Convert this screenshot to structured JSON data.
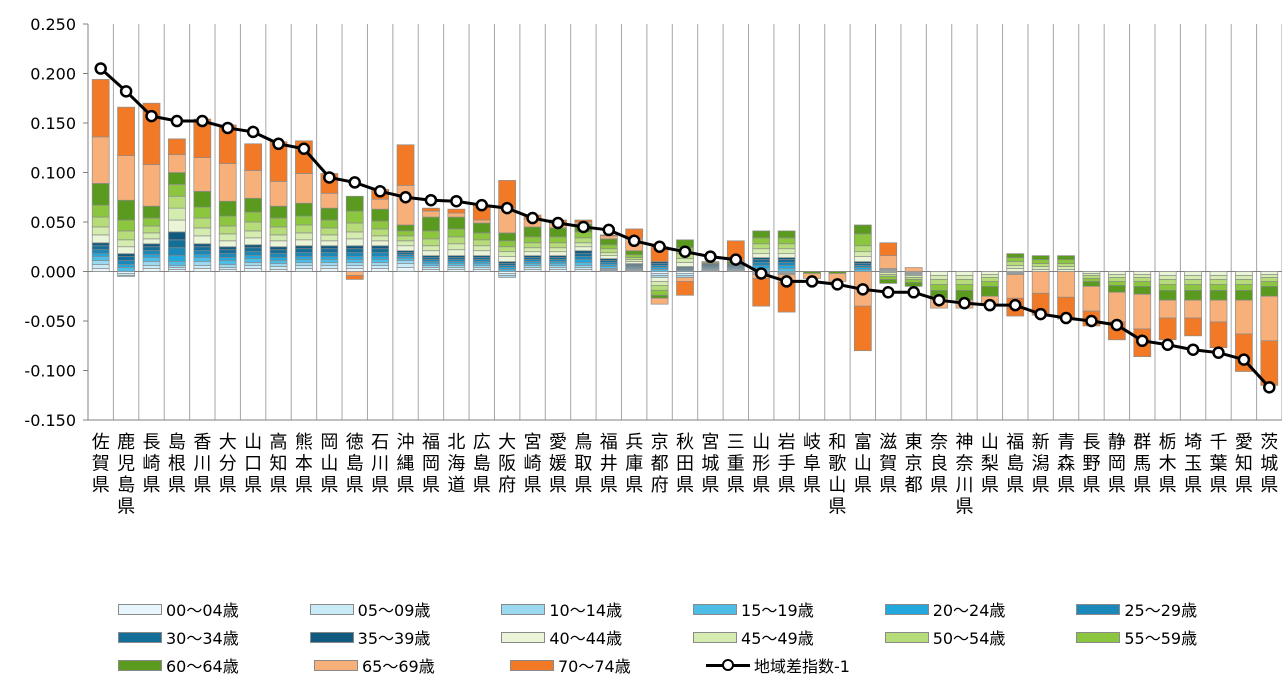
{
  "chart_data": {
    "type": "bar",
    "subtype": "stacked-bar-with-line",
    "title": "",
    "xlabel": "",
    "ylabel": "",
    "ylim": [
      -0.15,
      0.25
    ],
    "yticks": [
      0.25,
      0.2,
      0.15,
      0.1,
      0.05,
      0.0,
      -0.05,
      -0.1,
      -0.15
    ],
    "ytick_labels": [
      "0.250",
      "0.200",
      "0.150",
      "0.100",
      "0.050",
      "0.000",
      "-0.050",
      "-0.100",
      "-0.150"
    ],
    "grid": "vertical",
    "legend_position": "bottom",
    "categories": [
      "佐賀県",
      "鹿児島県",
      "長崎県",
      "島根県",
      "香川県",
      "大分県",
      "山口県",
      "高知県",
      "熊本県",
      "岡山県",
      "徳島県",
      "石川県",
      "沖縄県",
      "福岡県",
      "北海道",
      "広島県",
      "大阪府",
      "宮崎県",
      "愛媛県",
      "鳥取県",
      "福井県",
      "兵庫県",
      "京都府",
      "秋田県",
      "宮城県",
      "三重県",
      "山形県",
      "岩手県",
      "岐阜県",
      "和歌山県",
      "富山県",
      "滋賀県",
      "東京都",
      "奈良県",
      "神奈川県",
      "山梨県",
      "福島県",
      "新潟県",
      "青森県",
      "長野県",
      "静岡県",
      "群馬県",
      "栃木県",
      "埼玉県",
      "千葉県",
      "愛知県",
      "茨城県"
    ],
    "series": [
      {
        "name": "00～04歳",
        "color": "#e6f6fc",
        "type": "bar",
        "values": [
          0.003,
          -0.002,
          0.003,
          0.002,
          0.003,
          0.002,
          0.003,
          0.002,
          0.003,
          0.003,
          0.003,
          0.003,
          0.004,
          0.002,
          0.002,
          0.002,
          -0.002,
          0.002,
          0.002,
          0.002,
          0.001,
          0.001,
          -0.002,
          -0.002,
          0.001,
          0.001,
          -0.001,
          -0.001,
          0.0,
          0.0,
          0.0,
          0.001,
          -0.001,
          0.0,
          0.0,
          0.0,
          -0.001,
          0.0,
          0.0,
          0.0,
          0.0,
          0.0,
          0.0,
          0.0,
          0.0,
          0.0,
          0.0
        ]
      },
      {
        "name": "05～09歳",
        "color": "#c9ebf7",
        "type": "bar",
        "values": [
          0.004,
          -0.002,
          0.003,
          0.002,
          0.003,
          0.002,
          0.003,
          0.003,
          0.003,
          0.003,
          0.003,
          0.003,
          0.004,
          0.002,
          0.002,
          0.002,
          -0.002,
          0.002,
          0.002,
          0.002,
          0.001,
          0.001,
          -0.002,
          -0.002,
          0.001,
          0.001,
          -0.001,
          -0.001,
          0.0,
          0.0,
          0.0,
          0.001,
          -0.001,
          0.0,
          0.0,
          0.0,
          -0.001,
          0.0,
          0.0,
          0.0,
          0.0,
          0.0,
          0.0,
          0.0,
          0.0,
          0.0,
          0.0
        ]
      },
      {
        "name": "10～14歳",
        "color": "#9ad9f0",
        "type": "bar",
        "values": [
          0.004,
          -0.001,
          0.004,
          0.002,
          0.004,
          0.003,
          0.003,
          0.003,
          0.003,
          0.003,
          0.003,
          0.003,
          0.003,
          0.002,
          0.002,
          0.002,
          -0.002,
          0.002,
          0.002,
          0.002,
          0.001,
          0.001,
          -0.002,
          -0.002,
          0.001,
          0.001,
          -0.001,
          -0.001,
          0.0,
          0.0,
          0.0,
          0.001,
          -0.001,
          0.0,
          0.0,
          0.0,
          -0.001,
          0.0,
          0.0,
          0.0,
          0.0,
          0.0,
          0.0,
          0.0,
          0.0,
          0.0,
          0.0
        ]
      },
      {
        "name": "15～19歳",
        "color": "#4dbde6",
        "type": "bar",
        "values": [
          0.004,
          0.004,
          0.004,
          0.004,
          0.004,
          0.004,
          0.004,
          0.003,
          0.003,
          0.003,
          0.003,
          0.003,
          0.002,
          0.002,
          0.002,
          0.002,
          0.002,
          0.002,
          0.002,
          0.003,
          0.002,
          0.001,
          0.002,
          0.001,
          0.001,
          0.001,
          0.003,
          0.003,
          0.0,
          0.0,
          0.002,
          0.0,
          0.0,
          0.0,
          0.0,
          0.0,
          0.0,
          0.0,
          0.0,
          0.0,
          0.0,
          0.0,
          0.0,
          0.0,
          0.0,
          0.0,
          0.0
        ]
      },
      {
        "name": "20～24歳",
        "color": "#22a8dc",
        "type": "bar",
        "values": [
          0.003,
          0.003,
          0.003,
          0.006,
          0.003,
          0.003,
          0.003,
          0.003,
          0.003,
          0.003,
          0.003,
          0.003,
          0.002,
          0.002,
          0.002,
          0.002,
          0.002,
          0.002,
          0.002,
          0.003,
          0.002,
          0.001,
          0.002,
          0.001,
          0.001,
          0.001,
          0.003,
          0.003,
          0.0,
          0.0,
          0.002,
          0.0,
          0.0,
          0.0,
          0.0,
          0.0,
          0.0,
          0.0,
          0.0,
          0.0,
          0.0,
          0.0,
          0.0,
          0.0,
          0.0,
          0.0,
          0.0
        ]
      },
      {
        "name": "25～29歳",
        "color": "#1a88b8",
        "type": "bar",
        "values": [
          0.004,
          0.004,
          0.004,
          0.008,
          0.004,
          0.004,
          0.004,
          0.004,
          0.004,
          0.004,
          0.004,
          0.004,
          0.002,
          0.002,
          0.002,
          0.002,
          0.002,
          0.002,
          0.002,
          0.003,
          0.002,
          0.001,
          0.002,
          0.001,
          0.001,
          0.001,
          0.003,
          0.003,
          0.0,
          0.0,
          0.002,
          0.0,
          0.0,
          0.0,
          0.0,
          0.0,
          0.0,
          0.0,
          0.0,
          0.0,
          0.0,
          0.0,
          0.0,
          0.0,
          0.0,
          0.0,
          0.0
        ]
      },
      {
        "name": "30～34歳",
        "color": "#146f98",
        "type": "bar",
        "values": [
          0.004,
          0.004,
          0.004,
          0.008,
          0.004,
          0.004,
          0.004,
          0.004,
          0.004,
          0.004,
          0.004,
          0.004,
          0.002,
          0.002,
          0.002,
          0.002,
          0.002,
          0.002,
          0.002,
          0.003,
          0.002,
          0.001,
          0.002,
          0.001,
          0.001,
          0.001,
          0.003,
          0.003,
          0.0,
          0.0,
          0.002,
          0.0,
          0.0,
          0.0,
          0.0,
          0.0,
          0.0,
          0.0,
          0.0,
          0.0,
          0.0,
          0.0,
          0.0,
          0.0,
          0.0,
          0.0,
          0.0
        ]
      },
      {
        "name": "35～39歳",
        "color": "#0f5a7e",
        "type": "bar",
        "values": [
          0.003,
          0.003,
          0.003,
          0.008,
          0.003,
          0.003,
          0.003,
          0.003,
          0.003,
          0.003,
          0.003,
          0.003,
          0.002,
          0.002,
          0.002,
          0.002,
          0.002,
          0.002,
          0.002,
          0.003,
          0.002,
          0.001,
          0.002,
          0.001,
          0.001,
          0.001,
          0.002,
          0.002,
          0.0,
          0.0,
          0.002,
          0.0,
          0.0,
          0.0,
          0.0,
          0.0,
          0.0,
          0.0,
          0.0,
          0.0,
          0.0,
          0.0,
          0.0,
          0.0,
          0.0,
          0.0,
          0.0
        ]
      },
      {
        "name": "40～44歳",
        "color": "#eaf5d8",
        "type": "bar",
        "values": [
          0.008,
          0.007,
          0.005,
          0.012,
          0.008,
          0.006,
          0.007,
          0.006,
          0.006,
          0.005,
          0.007,
          0.005,
          0.005,
          0.005,
          0.006,
          0.005,
          0.005,
          0.004,
          0.004,
          0.004,
          0.003,
          0.002,
          -0.004,
          0.004,
          0.0,
          0.0,
          0.004,
          0.004,
          0.0,
          0.0,
          0.005,
          -0.001,
          -0.001,
          -0.004,
          -0.004,
          -0.003,
          0.003,
          0.002,
          0.002,
          -0.002,
          -0.003,
          -0.003,
          -0.004,
          -0.004,
          -0.004,
          -0.004,
          -0.003
        ]
      },
      {
        "name": "45～49歳",
        "color": "#d4ecb0",
        "type": "bar",
        "values": [
          0.008,
          0.007,
          0.006,
          0.012,
          0.008,
          0.007,
          0.007,
          0.006,
          0.007,
          0.006,
          0.007,
          0.005,
          0.005,
          0.005,
          0.006,
          0.005,
          0.005,
          0.004,
          0.004,
          0.004,
          0.003,
          0.002,
          -0.004,
          0.004,
          0.0,
          0.0,
          0.005,
          0.005,
          0.0,
          0.0,
          0.005,
          -0.002,
          -0.002,
          -0.004,
          -0.004,
          -0.003,
          0.003,
          0.003,
          0.003,
          -0.002,
          -0.003,
          -0.003,
          -0.004,
          -0.004,
          -0.004,
          -0.004,
          -0.003
        ]
      },
      {
        "name": "50～54歳",
        "color": "#b5dc78",
        "type": "bar",
        "values": [
          0.01,
          0.009,
          0.007,
          0.012,
          0.01,
          0.008,
          0.009,
          0.008,
          0.008,
          0.007,
          0.009,
          0.007,
          0.005,
          0.007,
          0.007,
          0.006,
          0.005,
          0.005,
          0.005,
          0.005,
          0.004,
          0.002,
          -0.005,
          0.005,
          0.0,
          0.0,
          0.005,
          0.005,
          0.0,
          0.0,
          0.006,
          -0.002,
          -0.002,
          -0.005,
          -0.005,
          -0.004,
          0.004,
          0.003,
          0.003,
          -0.003,
          -0.004,
          -0.004,
          -0.005,
          -0.005,
          -0.005,
          -0.005,
          -0.004
        ]
      },
      {
        "name": "55～59歳",
        "color": "#8cc63f",
        "type": "bar",
        "values": [
          0.012,
          0.011,
          0.008,
          0.012,
          0.011,
          0.01,
          0.01,
          0.009,
          0.009,
          0.008,
          0.012,
          0.008,
          0.005,
          0.008,
          0.008,
          0.007,
          0.006,
          0.006,
          0.006,
          0.006,
          0.004,
          0.003,
          -0.005,
          0.006,
          0.0,
          0.0,
          0.006,
          0.006,
          0.0,
          0.0,
          0.012,
          -0.003,
          -0.003,
          -0.006,
          -0.006,
          -0.005,
          0.004,
          0.004,
          0.004,
          -0.003,
          -0.004,
          -0.005,
          -0.006,
          -0.006,
          -0.006,
          -0.006,
          -0.005
        ]
      },
      {
        "name": "60～64歳",
        "color": "#5a9a1e",
        "type": "bar",
        "values": [
          0.022,
          0.02,
          0.012,
          0.012,
          0.016,
          0.015,
          0.014,
          0.012,
          0.013,
          0.012,
          0.015,
          0.012,
          0.006,
          0.014,
          0.012,
          0.01,
          0.008,
          0.01,
          0.009,
          0.008,
          0.006,
          0.004,
          -0.003,
          0.008,
          0.001,
          0.002,
          0.007,
          0.007,
          -0.002,
          -0.002,
          0.009,
          -0.004,
          -0.004,
          -0.008,
          -0.01,
          -0.01,
          0.004,
          0.004,
          0.004,
          -0.005,
          -0.007,
          -0.008,
          -0.01,
          -0.01,
          -0.01,
          -0.01,
          -0.01
        ]
      },
      {
        "name": "65～69歳",
        "color": "#f8b07a",
        "type": "bar",
        "values": [
          0.047,
          0.045,
          0.042,
          0.018,
          0.034,
          0.038,
          0.028,
          0.025,
          0.03,
          0.015,
          -0.004,
          0.01,
          0.04,
          0.006,
          0.004,
          0.003,
          0.025,
          0.008,
          0.005,
          0.002,
          0.003,
          0.012,
          -0.006,
          -0.004,
          0.001,
          0.001,
          -0.004,
          -0.008,
          -0.005,
          -0.008,
          -0.035,
          0.013,
          0.004,
          -0.01,
          -0.008,
          -0.009,
          -0.024,
          -0.022,
          -0.026,
          -0.025,
          -0.03,
          -0.035,
          -0.018,
          -0.018,
          -0.022,
          -0.034,
          -0.045
        ]
      },
      {
        "name": "70～74歳",
        "color": "#f27a26",
        "type": "bar",
        "values": [
          0.058,
          0.049,
          0.062,
          0.016,
          0.039,
          0.039,
          0.027,
          0.04,
          0.033,
          0.02,
          -0.004,
          0.01,
          0.041,
          0.003,
          0.004,
          0.015,
          0.028,
          0.004,
          0.003,
          0.002,
          0.001,
          0.01,
          0.015,
          -0.014,
          0.0,
          0.02,
          -0.028,
          -0.03,
          0.0,
          0.0,
          -0.045,
          0.013,
          0.0,
          0.0,
          0.0,
          0.0,
          -0.018,
          -0.022,
          -0.022,
          -0.015,
          -0.018,
          -0.028,
          -0.022,
          -0.018,
          -0.026,
          -0.038,
          -0.045
        ]
      },
      {
        "name": "地域差指数-1",
        "color": "#000000",
        "type": "line",
        "values": [
          0.205,
          0.182,
          0.157,
          0.152,
          0.152,
          0.145,
          0.141,
          0.129,
          0.124,
          0.095,
          0.09,
          0.081,
          0.075,
          0.072,
          0.071,
          0.067,
          0.064,
          0.054,
          0.049,
          0.045,
          0.042,
          0.031,
          0.025,
          0.02,
          0.015,
          0.012,
          -0.002,
          -0.01,
          -0.01,
          -0.013,
          -0.018,
          -0.021,
          -0.021,
          -0.029,
          -0.032,
          -0.034,
          -0.034,
          -0.043,
          -0.047,
          -0.05,
          -0.054,
          -0.07,
          -0.074,
          -0.079,
          -0.082,
          -0.089,
          -0.117
        ]
      }
    ]
  }
}
